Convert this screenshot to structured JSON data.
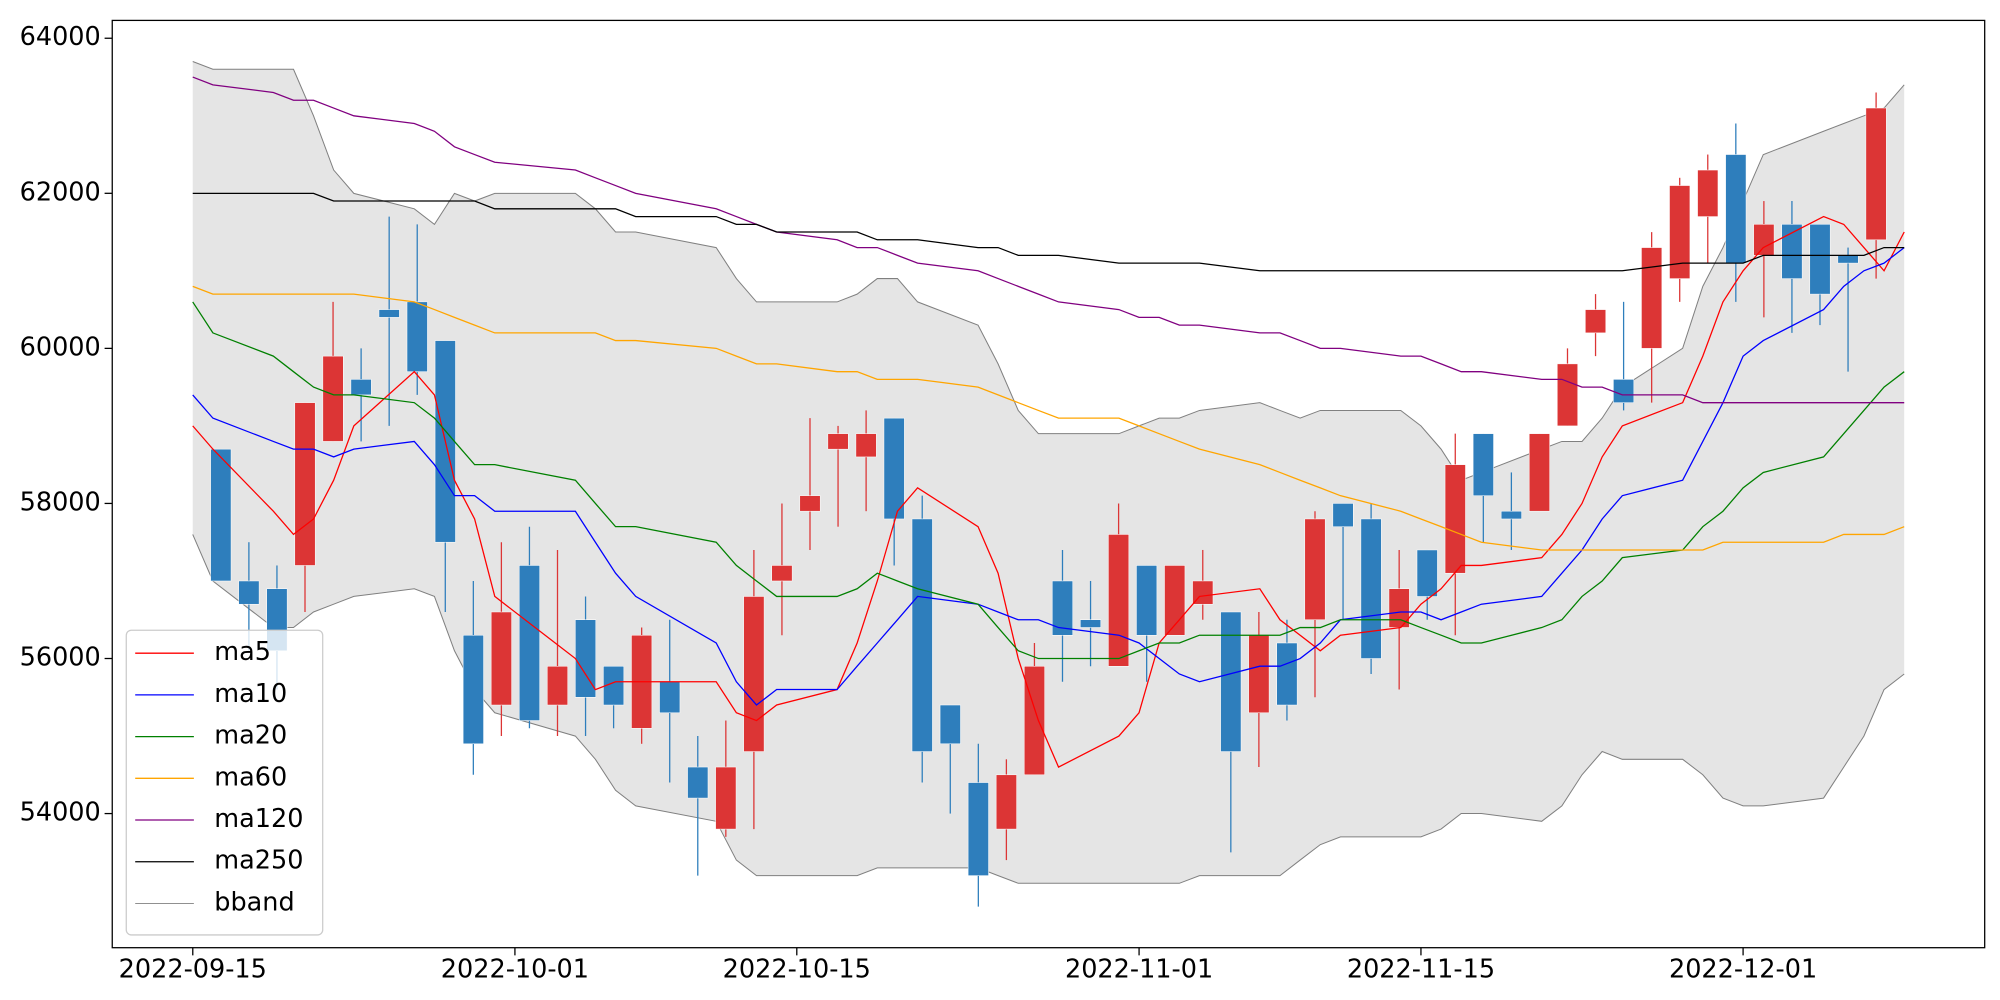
{
  "chart_data": {
    "type": "candlestick",
    "x": [
      "2022-09-15",
      "2022-09-16",
      "2022-09-19",
      "2022-09-20",
      "2022-09-21",
      "2022-09-22",
      "2022-09-23",
      "2022-09-26",
      "2022-09-27",
      "2022-09-28",
      "2022-09-29",
      "2022-09-30",
      "2022-10-04",
      "2022-10-05",
      "2022-10-06",
      "2022-10-07",
      "2022-10-11",
      "2022-10-12",
      "2022-10-13",
      "2022-10-14",
      "2022-10-17",
      "2022-10-18",
      "2022-10-19",
      "2022-10-20",
      "2022-10-21",
      "2022-10-24",
      "2022-10-25",
      "2022-10-26",
      "2022-10-27",
      "2022-10-28",
      "2022-10-31",
      "2022-11-01",
      "2022-11-02",
      "2022-11-03",
      "2022-11-04",
      "2022-11-07",
      "2022-11-08",
      "2022-11-09",
      "2022-11-10",
      "2022-11-11",
      "2022-11-14",
      "2022-11-15",
      "2022-11-16",
      "2022-11-17",
      "2022-11-18",
      "2022-11-21",
      "2022-11-22",
      "2022-11-23",
      "2022-11-24",
      "2022-11-25",
      "2022-11-28",
      "2022-11-29",
      "2022-11-30",
      "2022-12-01",
      "2022-12-02",
      "2022-12-05",
      "2022-12-06",
      "2022-12-07",
      "2022-12-08",
      "2022-12-09"
    ],
    "candles": {
      "up_color": "#dc3535",
      "down_color": "#2e7ebc",
      "open": [
        58700,
        57000,
        56900,
        57200,
        58800,
        59600,
        60500,
        60600,
        60100,
        56300,
        55400,
        57200,
        55400,
        56500,
        55900,
        55100,
        55700,
        54600,
        53800,
        54800,
        57000,
        57900,
        58700,
        58600,
        59100,
        57800,
        55400,
        54400,
        53800,
        54500,
        57000,
        56500,
        55900,
        57200,
        56300,
        56700,
        56600,
        55300,
        56200,
        56500,
        58000,
        57800,
        56400,
        57400,
        57100,
        58900,
        57900,
        57900,
        59000,
        60200,
        59600,
        60000,
        60900,
        61700,
        62500,
        61200,
        61600,
        61600,
        61200,
        61400
      ],
      "high": [
        58700,
        57500,
        57200,
        59300,
        60600,
        60000,
        61700,
        61600,
        60100,
        57000,
        57500,
        57700,
        57400,
        56800,
        55900,
        56400,
        56500,
        55000,
        55200,
        57400,
        58000,
        59100,
        59000,
        59200,
        59100,
        58100,
        55400,
        54900,
        54700,
        56200,
        57400,
        57000,
        58000,
        57200,
        57200,
        57400,
        56600,
        56600,
        56500,
        57900,
        58000,
        58000,
        57400,
        57400,
        58900,
        58900,
        58400,
        58900,
        60000,
        60700,
        60600,
        61500,
        62200,
        62500,
        62900,
        61900,
        61900,
        61600,
        61300,
        63300
      ],
      "low": [
        57000,
        56100,
        55600,
        56600,
        58800,
        58800,
        59000,
        59400,
        56600,
        54500,
        55000,
        55100,
        55000,
        55000,
        55100,
        54900,
        54400,
        53200,
        53700,
        53800,
        56300,
        57400,
        57700,
        57900,
        57200,
        54400,
        54000,
        52800,
        53400,
        54500,
        55700,
        55900,
        55900,
        55700,
        56300,
        56500,
        53500,
        54600,
        55200,
        55500,
        56500,
        55800,
        55600,
        56500,
        56300,
        57500,
        57400,
        57900,
        59000,
        59900,
        59200,
        59300,
        60600,
        61100,
        60600,
        60400,
        60200,
        60300,
        59700,
        60900
      ],
      "close": [
        57000,
        56700,
        56100,
        59300,
        59900,
        59400,
        60400,
        59700,
        57500,
        54900,
        56600,
        55200,
        55900,
        55500,
        55400,
        56300,
        55300,
        54200,
        54600,
        56800,
        57200,
        58100,
        58900,
        58900,
        57800,
        54800,
        54900,
        53200,
        54500,
        55900,
        56300,
        56400,
        57600,
        56300,
        57200,
        57000,
        54800,
        56300,
        55400,
        57800,
        57700,
        56000,
        56900,
        56800,
        58500,
        58100,
        57800,
        58900,
        59800,
        60500,
        59300,
        61300,
        62100,
        62300,
        61100,
        61600,
        60900,
        60700,
        61100,
        63100
      ]
    },
    "series": [
      {
        "name": "ma5",
        "color": "#ff0000",
        "values": [
          59000,
          58700,
          57900,
          57600,
          57800,
          58300,
          59000,
          59700,
          59400,
          58300,
          57800,
          56800,
          56000,
          55600,
          55700,
          55700,
          55700,
          55300,
          55200,
          55400,
          55600,
          56200,
          57000,
          57900,
          58200,
          57700,
          57100,
          56000,
          55200,
          54600,
          55000,
          55300,
          56200,
          56500,
          56800,
          56900,
          56500,
          56300,
          56100,
          56300,
          56400,
          56700,
          56900,
          57200,
          57200,
          57300,
          57600,
          58000,
          58600,
          59000,
          59300,
          59900,
          60600,
          61000,
          61300,
          61700,
          61600,
          61300,
          61000,
          61500
        ]
      },
      {
        "name": "ma10",
        "color": "#0000ff",
        "values": [
          59400,
          59100,
          58800,
          58700,
          58700,
          58600,
          58700,
          58800,
          58500,
          58100,
          58100,
          57900,
          57900,
          57500,
          57100,
          56800,
          56200,
          55700,
          55400,
          55600,
          55600,
          55900,
          56200,
          56500,
          56800,
          56700,
          56600,
          56500,
          56500,
          56400,
          56300,
          56200,
          56000,
          55800,
          55700,
          55900,
          55900,
          56000,
          56200,
          56500,
          56600,
          56600,
          56500,
          56600,
          56700,
          56800,
          57100,
          57400,
          57800,
          58100,
          58300,
          58800,
          59300,
          59900,
          60100,
          60500,
          60800,
          61000,
          61100,
          61300
        ]
      },
      {
        "name": "ma20",
        "color": "#008000",
        "values": [
          60600,
          60200,
          59900,
          59700,
          59500,
          59400,
          59400,
          59300,
          59100,
          58800,
          58500,
          58500,
          58300,
          58000,
          57700,
          57700,
          57500,
          57200,
          57000,
          56800,
          56800,
          56900,
          57100,
          57000,
          56900,
          56700,
          56400,
          56100,
          56000,
          56000,
          56000,
          56100,
          56200,
          56200,
          56300,
          56300,
          56300,
          56400,
          56400,
          56500,
          56500,
          56400,
          56300,
          56200,
          56200,
          56400,
          56500,
          56800,
          57000,
          57300,
          57400,
          57700,
          57900,
          58200,
          58400,
          58600,
          58900,
          59200,
          59500,
          59700
        ]
      },
      {
        "name": "ma60",
        "color": "#ffa500",
        "values": [
          60800,
          60700,
          60700,
          60700,
          60700,
          60700,
          60700,
          60600,
          60500,
          60400,
          60300,
          60200,
          60200,
          60200,
          60100,
          60100,
          60000,
          59900,
          59800,
          59800,
          59700,
          59700,
          59600,
          59600,
          59600,
          59500,
          59400,
          59300,
          59200,
          59100,
          59100,
          59000,
          58900,
          58800,
          58700,
          58500,
          58400,
          58300,
          58200,
          58100,
          57900,
          57800,
          57700,
          57600,
          57500,
          57400,
          57400,
          57400,
          57400,
          57400,
          57400,
          57400,
          57500,
          57500,
          57500,
          57500,
          57600,
          57600,
          57600,
          57700
        ]
      },
      {
        "name": "ma120",
        "color": "#800080",
        "values": [
          63500,
          63400,
          63300,
          63200,
          63200,
          63100,
          63000,
          62900,
          62800,
          62600,
          62500,
          62400,
          62300,
          62200,
          62100,
          62000,
          61800,
          61700,
          61600,
          61500,
          61400,
          61300,
          61300,
          61200,
          61100,
          61000,
          60900,
          60800,
          60700,
          60600,
          60500,
          60400,
          60400,
          60300,
          60300,
          60200,
          60200,
          60100,
          60000,
          60000,
          59900,
          59900,
          59800,
          59700,
          59700,
          59600,
          59600,
          59500,
          59500,
          59400,
          59400,
          59300,
          59300,
          59300,
          59300,
          59300,
          59300,
          59300,
          59300,
          59300
        ]
      },
      {
        "name": "ma250",
        "color": "#000000",
        "values": [
          62000,
          62000,
          62000,
          62000,
          62000,
          61900,
          61900,
          61900,
          61900,
          61900,
          61900,
          61800,
          61800,
          61800,
          61800,
          61700,
          61700,
          61600,
          61600,
          61500,
          61500,
          61500,
          61400,
          61400,
          61400,
          61300,
          61300,
          61200,
          61200,
          61200,
          61100,
          61100,
          61100,
          61100,
          61100,
          61000,
          61000,
          61000,
          61000,
          61000,
          61000,
          61000,
          61000,
          61000,
          61000,
          61000,
          61000,
          61000,
          61000,
          61000,
          61100,
          61100,
          61100,
          61100,
          61200,
          61200,
          61200,
          61200,
          61300,
          61300
        ]
      }
    ],
    "bband": {
      "name": "bband",
      "color": "#808080",
      "fill": "#e5e5e5",
      "upper": [
        63700,
        63600,
        63600,
        63600,
        63000,
        62300,
        62000,
        61800,
        61600,
        62000,
        61900,
        62000,
        62000,
        61800,
        61500,
        61500,
        61300,
        60900,
        60600,
        60600,
        60600,
        60700,
        60900,
        60900,
        60600,
        60300,
        59800,
        59200,
        58900,
        58900,
        58900,
        59000,
        59100,
        59100,
        59200,
        59300,
        59200,
        59100,
        59200,
        59200,
        59200,
        59000,
        58700,
        58300,
        58400,
        58700,
        58800,
        58800,
        59100,
        59500,
        60000,
        60800,
        61300,
        61900,
        62500,
        62800,
        62900,
        63000,
        63100,
        63400
      ],
      "lower": [
        57600,
        57000,
        56400,
        56400,
        56600,
        56700,
        56800,
        56900,
        56800,
        56100,
        55600,
        55300,
        55000,
        54700,
        54300,
        54100,
        53900,
        53400,
        53200,
        53200,
        53200,
        53200,
        53300,
        53300,
        53300,
        53300,
        53200,
        53100,
        53100,
        53100,
        53100,
        53100,
        53100,
        53100,
        53200,
        53200,
        53200,
        53400,
        53600,
        53700,
        53700,
        53700,
        53800,
        54000,
        54000,
        53900,
        54100,
        54500,
        54800,
        54700,
        54700,
        54500,
        54200,
        54100,
        54100,
        54200,
        54600,
        55000,
        55600,
        55800
      ]
    },
    "xlim": [
      "2022-09-11",
      "2022-12-13"
    ],
    "xticks": [
      "2022-09-15",
      "2022-10-01",
      "2022-10-15",
      "2022-11-01",
      "2022-11-15",
      "2022-12-01"
    ],
    "ylim": [
      52270,
      64230
    ],
    "yticks": [
      54000,
      56000,
      58000,
      60000,
      62000,
      64000
    ],
    "legend": "lower left"
  }
}
